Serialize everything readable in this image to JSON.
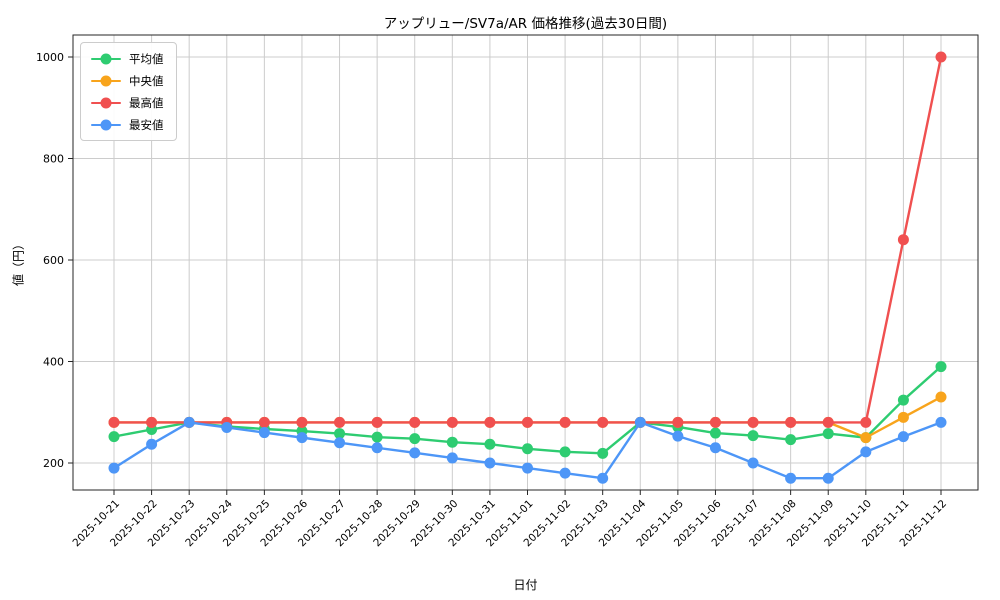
{
  "figure": {
    "title": "アップリュー/SV7a/AR 価格推移(過去30日間)",
    "xlabel": "日付",
    "ylabel": "値（円）",
    "background": "#ffffff",
    "grid_color": "#cccccc",
    "spine_color": "#262626"
  },
  "chart_data": {
    "type": "line",
    "title": "アップリュー/SV7a/AR 価格推移(過去30日間)",
    "xlabel": "日付",
    "ylabel": "値（円）",
    "x": [
      "2025-10-21",
      "2025-10-22",
      "2025-10-23",
      "2025-10-24",
      "2025-10-25",
      "2025-10-26",
      "2025-10-27",
      "2025-10-28",
      "2025-10-29",
      "2025-10-30",
      "2025-10-31",
      "2025-11-01",
      "2025-11-02",
      "2025-11-03",
      "2025-11-04",
      "2025-11-05",
      "2025-11-06",
      "2025-11-07",
      "2025-11-08",
      "2025-11-09",
      "2025-11-10",
      "2025-11-11",
      "2025-11-12"
    ],
    "series": [
      {
        "id": "average",
        "name": "平均値",
        "color": "#2ecc71",
        "values": [
          252,
          266,
          280,
          272,
          267,
          263,
          258,
          251,
          248,
          241,
          237,
          228,
          222,
          219,
          280,
          271,
          259,
          254,
          246,
          258,
          250,
          324,
          390
        ]
      },
      {
        "id": "median",
        "name": "中央値",
        "color": "#f8a41c",
        "values": [
          280,
          280,
          280,
          280,
          280,
          280,
          280,
          280,
          280,
          280,
          280,
          280,
          280,
          280,
          280,
          280,
          280,
          280,
          280,
          280,
          250,
          290,
          330
        ]
      },
      {
        "id": "max",
        "name": "最高値",
        "color": "#f05050",
        "values": [
          280,
          280,
          280,
          280,
          280,
          280,
          280,
          280,
          280,
          280,
          280,
          280,
          280,
          280,
          280,
          280,
          280,
          280,
          280,
          280,
          280,
          640,
          1000
        ]
      },
      {
        "id": "min",
        "name": "最安値",
        "color": "#4d96f7",
        "values": [
          190,
          237,
          280,
          270,
          260,
          250,
          240,
          230,
          220,
          210,
          200,
          190,
          180,
          170,
          280,
          253,
          230,
          200,
          170,
          170,
          222,
          252,
          280
        ]
      }
    ],
    "yticks": [
      200,
      400,
      600,
      800,
      1000
    ],
    "ylim": [
      147,
      1043
    ],
    "grid": true,
    "legend_position": "upper left"
  }
}
